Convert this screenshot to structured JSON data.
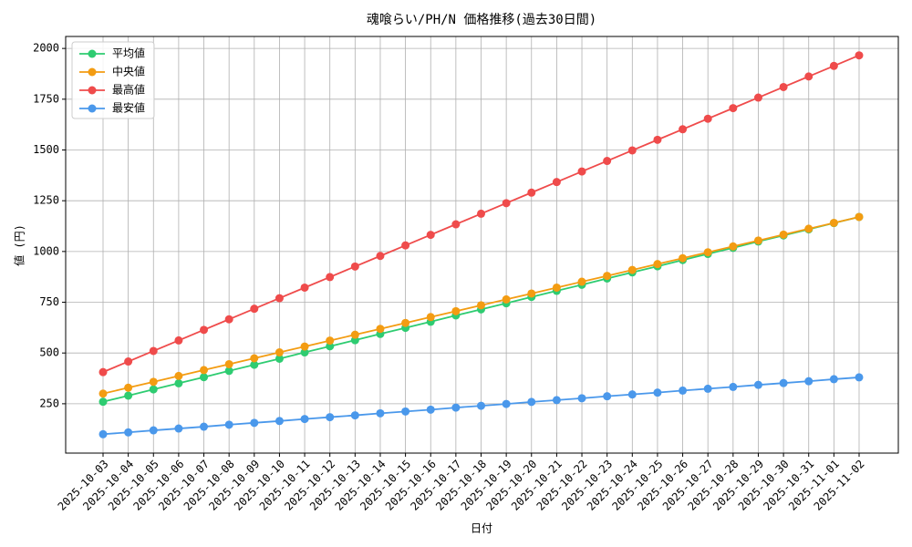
{
  "chart_data": {
    "type": "line",
    "title": "魂喰らい/PH/N 価格推移(過去30日間)",
    "x_label": "日付",
    "y_label": "値 (円)",
    "categories": [
      "2025-10-03",
      "2025-10-04",
      "2025-10-05",
      "2025-10-06",
      "2025-10-07",
      "2025-10-08",
      "2025-10-09",
      "2025-10-10",
      "2025-10-11",
      "2025-10-12",
      "2025-10-13",
      "2025-10-14",
      "2025-10-15",
      "2025-10-16",
      "2025-10-17",
      "2025-10-18",
      "2025-10-19",
      "2025-10-20",
      "2025-10-21",
      "2025-10-22",
      "2025-10-23",
      "2025-10-24",
      "2025-10-25",
      "2025-10-26",
      "2025-10-27",
      "2025-10-28",
      "2025-10-29",
      "2025-10-30",
      "2025-10-31",
      "2025-11-01",
      "2025-11-02"
    ],
    "series": [
      {
        "name": "平均値",
        "color": "#2ecc71",
        "values": [
          260,
          290,
          321,
          351,
          381,
          412,
          442,
          472,
          503,
          533,
          563,
          594,
          624,
          654,
          685,
          715,
          745,
          776,
          806,
          836,
          867,
          897,
          927,
          958,
          988,
          1018,
          1049,
          1079,
          1109,
          1140,
          1170
        ]
      },
      {
        "name": "中央値",
        "color": "#f39c12",
        "values": [
          300,
          329,
          358,
          387,
          416,
          445,
          474,
          503,
          532,
          561,
          590,
          619,
          648,
          677,
          706,
          735,
          764,
          793,
          822,
          851,
          880,
          909,
          938,
          967,
          996,
          1025,
          1054,
          1083,
          1112,
          1141,
          1170
        ]
      },
      {
        "name": "最高値",
        "color": "#ef4b4b",
        "values": [
          406,
          458,
          510,
          562,
          614,
          666,
          718,
          770,
          822,
          874,
          926,
          978,
          1030,
          1082,
          1134,
          1186,
          1238,
          1290,
          1342,
          1394,
          1446,
          1498,
          1550,
          1602,
          1654,
          1706,
          1758,
          1810,
          1862,
          1914,
          1966
        ]
      },
      {
        "name": "最安値",
        "color": "#4a98eb",
        "values": [
          100,
          109,
          119,
          128,
          137,
          147,
          156,
          165,
          175,
          184,
          193,
          203,
          212,
          221,
          231,
          240,
          249,
          259,
          268,
          277,
          287,
          296,
          305,
          315,
          324,
          333,
          343,
          352,
          361,
          371,
          380
        ]
      }
    ],
    "ylim": [
      7,
      2059
    ],
    "yticks": [
      250,
      500,
      750,
      1000,
      1250,
      1500,
      1750,
      2000
    ],
    "grid": true,
    "legend": "upper left"
  }
}
